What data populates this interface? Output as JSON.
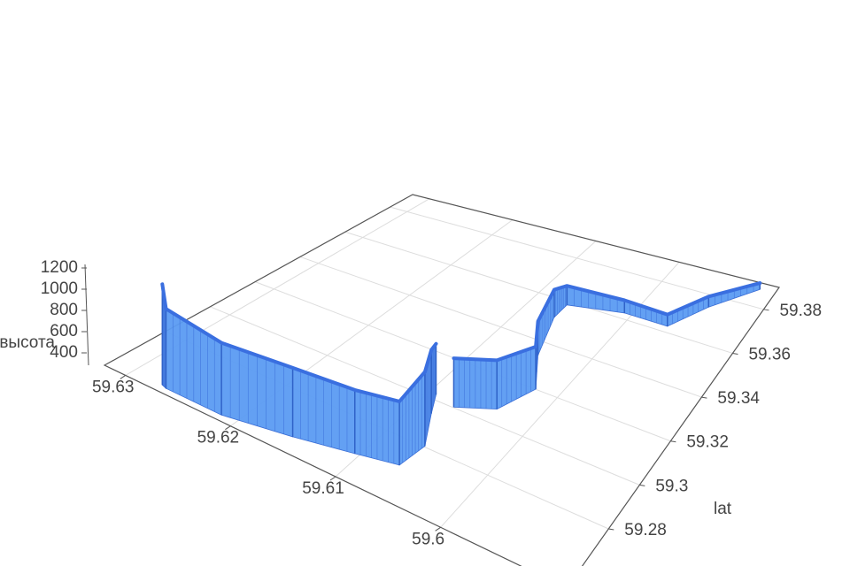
{
  "chart_data": {
    "type": "ribbon3d",
    "zlabel": "высота",
    "ylabel": "lat",
    "x": [
      59.6272,
      59.6267,
      59.6214,
      59.6155,
      59.6104,
      59.6067,
      59.6063,
      59.6082,
      59.6093,
      null,
      59.6071,
      59.6038,
      59.6023,
      59.6047,
      59.6065,
      59.6065,
      59.6008,
      59.5959,
      59.5935,
      59.5898
    ],
    "y": [
      59.2564,
      59.2557,
      59.2557,
      59.2605,
      59.2653,
      59.2688,
      59.2804,
      59.2941,
      59.3023,
      null,
      59.3003,
      59.3064,
      59.3201,
      59.3338,
      59.3516,
      59.3585,
      59.3626,
      59.3626,
      59.3749,
      59.3873
    ],
    "z": [
      1250,
      1050,
      980,
      950,
      900,
      900,
      1000,
      900,
      780,
      null,
      760,
      760,
      700,
      620,
      560,
      480,
      420,
      410,
      400,
      360
    ],
    "color": "#5b9bf2",
    "xlim": [
      59.588,
      59.632
    ],
    "ylim": [
      59.253,
      59.39
    ],
    "zlim": [
      300,
      1250
    ],
    "xticks": [
      59.6,
      59.61,
      59.62,
      59.63
    ],
    "yticks": [
      59.28,
      59.3,
      59.32,
      59.34,
      59.36,
      59.38
    ],
    "zticks": [
      400,
      600,
      800,
      1000,
      1200
    ],
    "grid": true
  }
}
